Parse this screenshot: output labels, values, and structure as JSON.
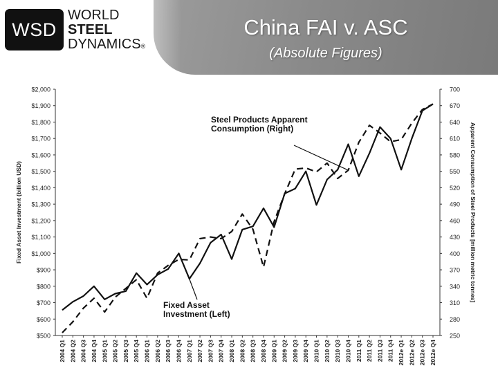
{
  "header": {
    "logo_abbr": "WSD",
    "logo_lines": [
      "WORLD",
      "STEEL",
      "DYNAMICS"
    ],
    "logo_mark": "®",
    "title": "China FAI v. ASC",
    "subtitle": "(Absolute Figures)",
    "banner_color": "#8f8f8f"
  },
  "chart_data": {
    "type": "line",
    "categories": [
      "2004 Q1",
      "2004 Q2",
      "2004 Q3",
      "2004 Q4",
      "2005 Q1",
      "2005 Q2",
      "2005 Q3",
      "2005 Q4",
      "2006 Q1",
      "2006 Q2",
      "2006 Q3",
      "2006 Q4",
      "2007 Q1",
      "2007 Q2",
      "2007 Q3",
      "2007 Q4",
      "2008 Q1",
      "2008 Q2",
      "2008 Q3",
      "2008 Q4",
      "2009 Q1",
      "2009 Q2",
      "2009 Q3",
      "2009 Q4",
      "2010 Q1",
      "2010 Q2",
      "2010 Q3",
      "2010 Q4",
      "2011 Q1",
      "2011 Q2",
      "2011 Q3",
      "2011 Q4",
      "2012e Q1",
      "2012e Q2",
      "2012e Q3",
      "2012e Q4"
    ],
    "ylabel_left": "Fixed Asset Investment (billion USD)",
    "ylabel_right": "Apparent Consumption of Steel Products [million metric tonnes]",
    "ylim_left": [
      500,
      2000
    ],
    "ylim_right": [
      250,
      700
    ],
    "yticks_left": [
      "$500",
      "$600",
      "$700",
      "$800",
      "$900",
      "$1,000",
      "$1,100",
      "$1,200",
      "$1,300",
      "$1,400",
      "$1,500",
      "$1,600",
      "$1,700",
      "$1,800",
      "$1,900",
      "$2,000"
    ],
    "yticks_right": [
      "250",
      "280",
      "310",
      "340",
      "370",
      "400",
      "430",
      "460",
      "490",
      "520",
      "550",
      "580",
      "610",
      "640",
      "670",
      "700"
    ],
    "series": [
      {
        "name": "Fixed Asset Investment (Left)",
        "axis": "left",
        "style": "solid",
        "values": [
          655,
          705,
          740,
          800,
          720,
          755,
          770,
          880,
          810,
          870,
          905,
          1000,
          845,
          940,
          1065,
          1115,
          965,
          1145,
          1165,
          1275,
          1160,
          1365,
          1395,
          1500,
          1295,
          1450,
          1510,
          1665,
          1470,
          1610,
          1770,
          1700,
          1510,
          1700,
          1870,
          1910
        ]
      },
      {
        "name": "Steel Products Apparent Consumption (Right)",
        "axis": "right",
        "style": "dashed",
        "values": [
          255,
          275,
          300,
          318,
          293,
          320,
          336,
          352,
          318,
          364,
          378,
          389,
          388,
          427,
          430,
          427,
          440,
          472,
          444,
          375,
          458,
          509,
          554,
          556,
          549,
          565,
          537,
          552,
          603,
          634,
          620,
          604,
          608,
          638,
          663,
          673
        ]
      }
    ],
    "annotations": [
      {
        "text_lines": [
          "Steel Products Apparent",
          "Consumption (Right)"
        ],
        "target_series": 1,
        "target_index": 27
      },
      {
        "text_lines": [
          "Fixed Asset",
          "Investment (Left)"
        ],
        "target_series": 0,
        "target_index": 12
      }
    ],
    "grid": false
  }
}
